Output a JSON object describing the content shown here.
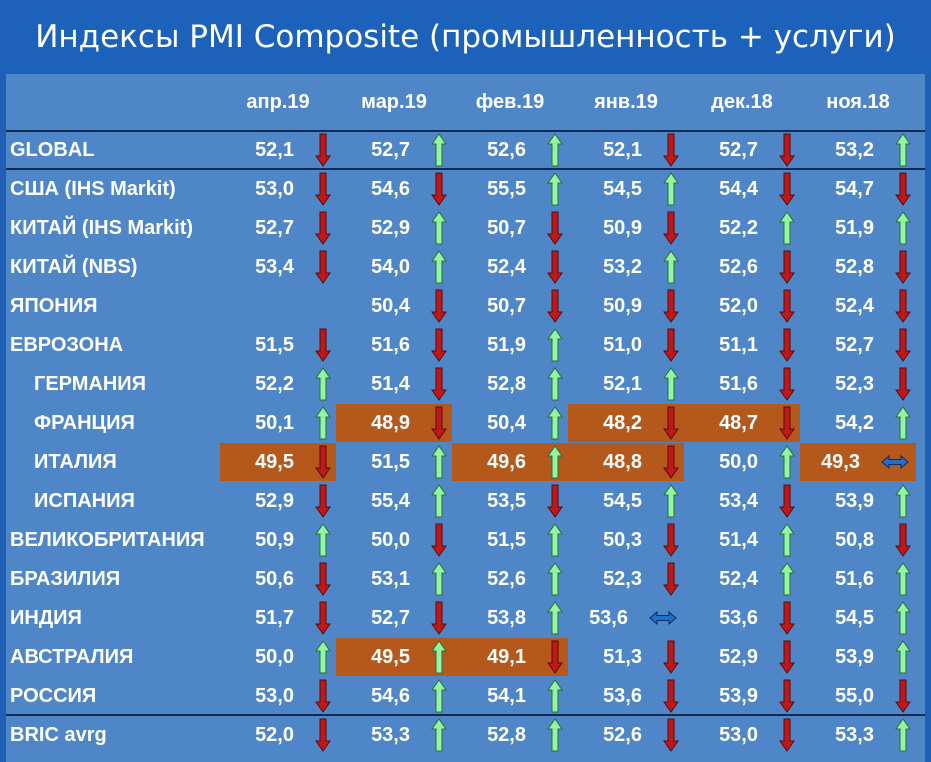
{
  "title": "Индексы PMI Composite (промышленность + услуги)",
  "colors": {
    "background": "#1f5fb4",
    "panel": "#4f86c8",
    "highlight": "#b4581c",
    "arrow_up": "#90f7a0",
    "arrow_down": "#c01818",
    "arrow_flat": "#1e6fd0"
  },
  "columns": [
    "апр.19",
    "мар.19",
    "фев.19",
    "янв.19",
    "дек.18",
    "ноя.18"
  ],
  "rows": [
    {
      "label": "GLOBAL",
      "indent": false,
      "cells": [
        {
          "value": "52,1",
          "arrow": "down",
          "hl": false
        },
        {
          "value": "52,7",
          "arrow": "up",
          "hl": false
        },
        {
          "value": "52,6",
          "arrow": "up",
          "hl": false
        },
        {
          "value": "52,1",
          "arrow": "down",
          "hl": false
        },
        {
          "value": "52,7",
          "arrow": "down",
          "hl": false
        },
        {
          "value": "53,2",
          "arrow": "up",
          "hl": false
        }
      ]
    },
    {
      "label": "США (IHS Markit)",
      "indent": false,
      "cells": [
        {
          "value": "53,0",
          "arrow": "down",
          "hl": false
        },
        {
          "value": "54,6",
          "arrow": "down",
          "hl": false
        },
        {
          "value": "55,5",
          "arrow": "up",
          "hl": false
        },
        {
          "value": "54,5",
          "arrow": "up",
          "hl": false
        },
        {
          "value": "54,4",
          "arrow": "down",
          "hl": false
        },
        {
          "value": "54,7",
          "arrow": "down",
          "hl": false
        }
      ]
    },
    {
      "label": "КИТАЙ (IHS Markit)",
      "indent": false,
      "cells": [
        {
          "value": "52,7",
          "arrow": "down",
          "hl": false
        },
        {
          "value": "52,9",
          "arrow": "up",
          "hl": false
        },
        {
          "value": "50,7",
          "arrow": "down",
          "hl": false
        },
        {
          "value": "50,9",
          "arrow": "down",
          "hl": false
        },
        {
          "value": "52,2",
          "arrow": "up",
          "hl": false
        },
        {
          "value": "51,9",
          "arrow": "up",
          "hl": false
        }
      ]
    },
    {
      "label": "КИТАЙ (NBS)",
      "indent": false,
      "cells": [
        {
          "value": "53,4",
          "arrow": "down",
          "hl": false
        },
        {
          "value": "54,0",
          "arrow": "up",
          "hl": false
        },
        {
          "value": "52,4",
          "arrow": "down",
          "hl": false
        },
        {
          "value": "53,2",
          "arrow": "up",
          "hl": false
        },
        {
          "value": "52,6",
          "arrow": "down",
          "hl": false
        },
        {
          "value": "52,8",
          "arrow": "down",
          "hl": false
        }
      ]
    },
    {
      "label": "ЯПОНИЯ",
      "indent": false,
      "cells": [
        {
          "value": "",
          "arrow": "",
          "hl": false
        },
        {
          "value": "50,4",
          "arrow": "down",
          "hl": false
        },
        {
          "value": "50,7",
          "arrow": "down",
          "hl": false
        },
        {
          "value": "50,9",
          "arrow": "down",
          "hl": false
        },
        {
          "value": "52,0",
          "arrow": "down",
          "hl": false
        },
        {
          "value": "52,4",
          "arrow": "down",
          "hl": false
        }
      ]
    },
    {
      "label": "ЕВРОЗОНА",
      "indent": false,
      "cells": [
        {
          "value": "51,5",
          "arrow": "down",
          "hl": false
        },
        {
          "value": "51,6",
          "arrow": "down",
          "hl": false
        },
        {
          "value": "51,9",
          "arrow": "up",
          "hl": false
        },
        {
          "value": "51,0",
          "arrow": "down",
          "hl": false
        },
        {
          "value": "51,1",
          "arrow": "down",
          "hl": false
        },
        {
          "value": "52,7",
          "arrow": "down",
          "hl": false
        }
      ]
    },
    {
      "label": "ГЕРМАНИЯ",
      "indent": true,
      "cells": [
        {
          "value": "52,2",
          "arrow": "up",
          "hl": false
        },
        {
          "value": "51,4",
          "arrow": "down",
          "hl": false
        },
        {
          "value": "52,8",
          "arrow": "up",
          "hl": false
        },
        {
          "value": "52,1",
          "arrow": "up",
          "hl": false
        },
        {
          "value": "51,6",
          "arrow": "down",
          "hl": false
        },
        {
          "value": "52,3",
          "arrow": "down",
          "hl": false
        }
      ]
    },
    {
      "label": "ФРАНЦИЯ",
      "indent": true,
      "cells": [
        {
          "value": "50,1",
          "arrow": "up",
          "hl": false
        },
        {
          "value": "48,9",
          "arrow": "down",
          "hl": true
        },
        {
          "value": "50,4",
          "arrow": "up",
          "hl": false
        },
        {
          "value": "48,2",
          "arrow": "down",
          "hl": true
        },
        {
          "value": "48,7",
          "arrow": "down",
          "hl": true
        },
        {
          "value": "54,2",
          "arrow": "up",
          "hl": false
        }
      ]
    },
    {
      "label": "ИТАЛИЯ",
      "indent": true,
      "cells": [
        {
          "value": "49,5",
          "arrow": "down",
          "hl": true
        },
        {
          "value": "51,5",
          "arrow": "up",
          "hl": false
        },
        {
          "value": "49,6",
          "arrow": "up",
          "hl": true
        },
        {
          "value": "48,8",
          "arrow": "down",
          "hl": true
        },
        {
          "value": "50,0",
          "arrow": "up",
          "hl": false
        },
        {
          "value": "49,3",
          "arrow": "flat",
          "hl": true
        }
      ]
    },
    {
      "label": "ИСПАНИЯ",
      "indent": true,
      "cells": [
        {
          "value": "52,9",
          "arrow": "down",
          "hl": false
        },
        {
          "value": "55,4",
          "arrow": "up",
          "hl": false
        },
        {
          "value": "53,5",
          "arrow": "down",
          "hl": false
        },
        {
          "value": "54,5",
          "arrow": "up",
          "hl": false
        },
        {
          "value": "53,4",
          "arrow": "down",
          "hl": false
        },
        {
          "value": "53,9",
          "arrow": "up",
          "hl": false
        }
      ]
    },
    {
      "label": "ВЕЛИКОБРИТАНИЯ",
      "indent": false,
      "cells": [
        {
          "value": "50,9",
          "arrow": "up",
          "hl": false
        },
        {
          "value": "50,0",
          "arrow": "down",
          "hl": false
        },
        {
          "value": "51,5",
          "arrow": "up",
          "hl": false
        },
        {
          "value": "50,3",
          "arrow": "down",
          "hl": false
        },
        {
          "value": "51,4",
          "arrow": "up",
          "hl": false
        },
        {
          "value": "50,8",
          "arrow": "down",
          "hl": false
        }
      ]
    },
    {
      "label": "БРАЗИЛИЯ",
      "indent": false,
      "cells": [
        {
          "value": "50,6",
          "arrow": "down",
          "hl": false
        },
        {
          "value": "53,1",
          "arrow": "up",
          "hl": false
        },
        {
          "value": "52,6",
          "arrow": "up",
          "hl": false
        },
        {
          "value": "52,3",
          "arrow": "down",
          "hl": false
        },
        {
          "value": "52,4",
          "arrow": "up",
          "hl": false
        },
        {
          "value": "51,6",
          "arrow": "up",
          "hl": false
        }
      ]
    },
    {
      "label": "ИНДИЯ",
      "indent": false,
      "cells": [
        {
          "value": "51,7",
          "arrow": "down",
          "hl": false
        },
        {
          "value": "52,7",
          "arrow": "down",
          "hl": false
        },
        {
          "value": "53,8",
          "arrow": "up",
          "hl": false
        },
        {
          "value": "53,6",
          "arrow": "flat",
          "hl": false
        },
        {
          "value": "53,6",
          "arrow": "down",
          "hl": false
        },
        {
          "value": "54,5",
          "arrow": "up",
          "hl": false
        }
      ]
    },
    {
      "label": "АВСТРАЛИЯ",
      "indent": false,
      "cells": [
        {
          "value": "50,0",
          "arrow": "up",
          "hl": false
        },
        {
          "value": "49,5",
          "arrow": "up",
          "hl": true
        },
        {
          "value": "49,1",
          "arrow": "down",
          "hl": true
        },
        {
          "value": "51,3",
          "arrow": "down",
          "hl": false
        },
        {
          "value": "52,9",
          "arrow": "down",
          "hl": false
        },
        {
          "value": "53,9",
          "arrow": "up",
          "hl": false
        }
      ]
    },
    {
      "label": "РОССИЯ",
      "indent": false,
      "cells": [
        {
          "value": "53,0",
          "arrow": "down",
          "hl": false
        },
        {
          "value": "54,6",
          "arrow": "up",
          "hl": false
        },
        {
          "value": "54,1",
          "arrow": "up",
          "hl": false
        },
        {
          "value": "53,6",
          "arrow": "down",
          "hl": false
        },
        {
          "value": "53,9",
          "arrow": "down",
          "hl": false
        },
        {
          "value": "55,0",
          "arrow": "down",
          "hl": false
        }
      ]
    },
    {
      "label": "BRIC avrg",
      "indent": false,
      "cells": [
        {
          "value": "52,0",
          "arrow": "down",
          "hl": false
        },
        {
          "value": "53,3",
          "arrow": "up",
          "hl": false
        },
        {
          "value": "52,8",
          "arrow": "up",
          "hl": false
        },
        {
          "value": "52,6",
          "arrow": "down",
          "hl": false
        },
        {
          "value": "53,0",
          "arrow": "down",
          "hl": false
        },
        {
          "value": "53,3",
          "arrow": "up",
          "hl": false
        }
      ]
    }
  ]
}
